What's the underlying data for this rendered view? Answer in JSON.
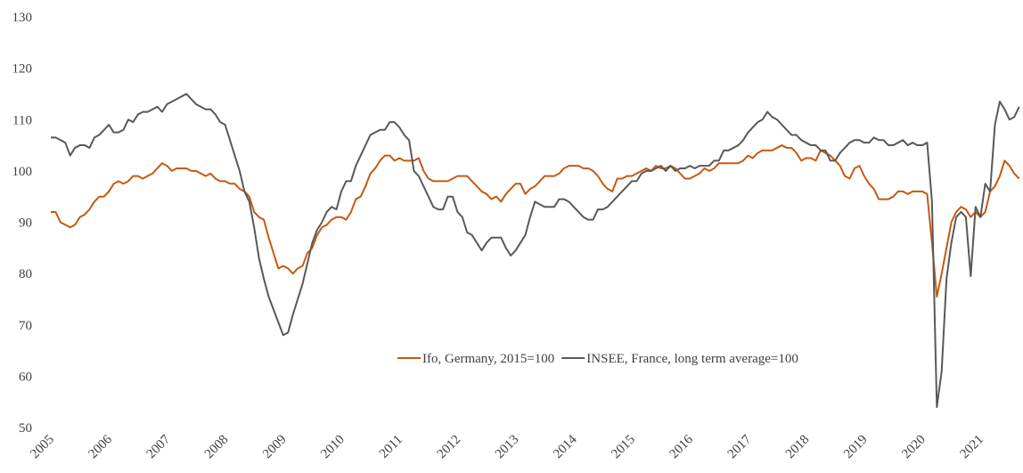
{
  "chart_data": {
    "type": "line",
    "categories": [
      "2005",
      null,
      null,
      null,
      null,
      null,
      null,
      null,
      null,
      null,
      null,
      null,
      "2006",
      null,
      null,
      null,
      null,
      null,
      null,
      null,
      null,
      null,
      null,
      null,
      "2007",
      null,
      null,
      null,
      null,
      null,
      null,
      null,
      null,
      null,
      null,
      null,
      "2008",
      null,
      null,
      null,
      null,
      null,
      null,
      null,
      null,
      null,
      null,
      null,
      "2009",
      null,
      null,
      null,
      null,
      null,
      null,
      null,
      null,
      null,
      null,
      null,
      "2010",
      null,
      null,
      null,
      null,
      null,
      null,
      null,
      null,
      null,
      null,
      null,
      "2011",
      null,
      null,
      null,
      null,
      null,
      null,
      null,
      null,
      null,
      null,
      null,
      "2012",
      null,
      null,
      null,
      null,
      null,
      null,
      null,
      null,
      null,
      null,
      null,
      "2013",
      null,
      null,
      null,
      null,
      null,
      null,
      null,
      null,
      null,
      null,
      null,
      "2014",
      null,
      null,
      null,
      null,
      null,
      null,
      null,
      null,
      null,
      null,
      null,
      "2015",
      null,
      null,
      null,
      null,
      null,
      null,
      null,
      null,
      null,
      null,
      null,
      "2016",
      null,
      null,
      null,
      null,
      null,
      null,
      null,
      null,
      null,
      null,
      null,
      "2017",
      null,
      null,
      null,
      null,
      null,
      null,
      null,
      null,
      null,
      null,
      null,
      "2018",
      null,
      null,
      null,
      null,
      null,
      null,
      null,
      null,
      null,
      null,
      null,
      "2019",
      null,
      null,
      null,
      null,
      null,
      null,
      null,
      null,
      null,
      null,
      null,
      "2020",
      null,
      null,
      null,
      null,
      null,
      null,
      null,
      null,
      null,
      null,
      null,
      "2021",
      null,
      null,
      null,
      null,
      null,
      null,
      null,
      null
    ],
    "series": [
      {
        "name": "Ifo, Germany, 2015=100",
        "color": "#c65911",
        "values": [
          92,
          92,
          90,
          89.5,
          89,
          89.5,
          91,
          91.5,
          92.5,
          94,
          95,
          95,
          96,
          97.5,
          98,
          97.5,
          98,
          99,
          99,
          98.5,
          99,
          99.5,
          100.5,
          101.5,
          101,
          100,
          100.5,
          100.5,
          100.5,
          100,
          100,
          99.5,
          99,
          99.5,
          98.5,
          98,
          98,
          97.5,
          97.5,
          96.5,
          96,
          95,
          92,
          91,
          90.5,
          87,
          84,
          81,
          81.5,
          81,
          80,
          81,
          81.5,
          84,
          85,
          87.5,
          89,
          89.5,
          90.5,
          91,
          91,
          90.5,
          92,
          94.5,
          95,
          97,
          99.5,
          100.5,
          102,
          103,
          103,
          102,
          102.5,
          102,
          102,
          102,
          102.5,
          100,
          98.5,
          98,
          98,
          98,
          98,
          98.5,
          99,
          99,
          99,
          98,
          97,
          96,
          95.5,
          94.5,
          95,
          94,
          95.5,
          96.5,
          97.5,
          97.5,
          95.5,
          96.5,
          97,
          98,
          99,
          99,
          99,
          99.5,
          100.5,
          101,
          101,
          101,
          100.5,
          100.5,
          100,
          99,
          97.5,
          96.5,
          96,
          98.5,
          98.5,
          99,
          99,
          99.5,
          100,
          100.5,
          100,
          101,
          100.5,
          100.5,
          101,
          100.5,
          99.5,
          98.5,
          98.5,
          99,
          99.5,
          100.5,
          100,
          100.5,
          101.5,
          101.5,
          101.5,
          101.5,
          101.5,
          102,
          103,
          102.5,
          103.5,
          104,
          104,
          104,
          104.5,
          105,
          104.5,
          104.5,
          103.5,
          102,
          102.5,
          102.5,
          102,
          104,
          103.5,
          103,
          102,
          101,
          99,
          98.5,
          100.5,
          101,
          99,
          97.5,
          96.5,
          94.5,
          94.5,
          94.5,
          95,
          96,
          96,
          95.5,
          96,
          96,
          96,
          95.5,
          86,
          75.5,
          80,
          85,
          90,
          92,
          93,
          92.5,
          91,
          92,
          91,
          92,
          96,
          97,
          99,
          102,
          101,
          99.5,
          98.5
        ]
      },
      {
        "name": "INSEE, France, long term average=100",
        "color": "#595959",
        "values": [
          106.5,
          106.5,
          106,
          105.5,
          103,
          104.5,
          105,
          105,
          104.5,
          106.5,
          107,
          108,
          109,
          107.5,
          107.5,
          108,
          110,
          109.5,
          111,
          111.5,
          111.5,
          112,
          112.5,
          111.5,
          113,
          113.5,
          114,
          114.5,
          115,
          114,
          113,
          112.5,
          112,
          112,
          111,
          109.5,
          109,
          106,
          103,
          100,
          96,
          94,
          89,
          83,
          79,
          75.5,
          73,
          70.5,
          68,
          68.5,
          72,
          75,
          78,
          82,
          86,
          88.5,
          90,
          92,
          93,
          92.5,
          96,
          98,
          98,
          101,
          103,
          105,
          107,
          107.5,
          108,
          108,
          109.5,
          109.5,
          108.5,
          107,
          106,
          100,
          99,
          97,
          95,
          93,
          92.5,
          92.5,
          95,
          95,
          92,
          91,
          88,
          87.5,
          86,
          84.5,
          86,
          87,
          87,
          87,
          85,
          83.5,
          84.5,
          86,
          87.5,
          91,
          94,
          93.5,
          93,
          93,
          93,
          94.5,
          94.5,
          94,
          93,
          92,
          91,
          90.5,
          90.5,
          92.5,
          92.5,
          93,
          94,
          95,
          96,
          97,
          98,
          98,
          99.5,
          100,
          100,
          100.5,
          101,
          100,
          101,
          100,
          100.5,
          100.5,
          101,
          100.5,
          101,
          101,
          101,
          102,
          102,
          104,
          104,
          104.5,
          105,
          106,
          107.5,
          108.5,
          109.5,
          110,
          111.5,
          110.5,
          110,
          109,
          108,
          107,
          107,
          106,
          105.5,
          105,
          105,
          104,
          104,
          102,
          102,
          103.5,
          104.5,
          105.5,
          106,
          106,
          105.5,
          105.5,
          106.5,
          106,
          106,
          105,
          105,
          105.5,
          106,
          105,
          105.5,
          105,
          105,
          105.5,
          94,
          54,
          61,
          79,
          86,
          91,
          92,
          91,
          79.5,
          93,
          91,
          97.5,
          96,
          109,
          113.5,
          112,
          110,
          110.5,
          112.5
        ]
      }
    ],
    "ylim": [
      50,
      130
    ],
    "yticks": [
      50,
      60,
      70,
      80,
      90,
      100,
      110,
      120,
      130
    ],
    "grid": false
  }
}
